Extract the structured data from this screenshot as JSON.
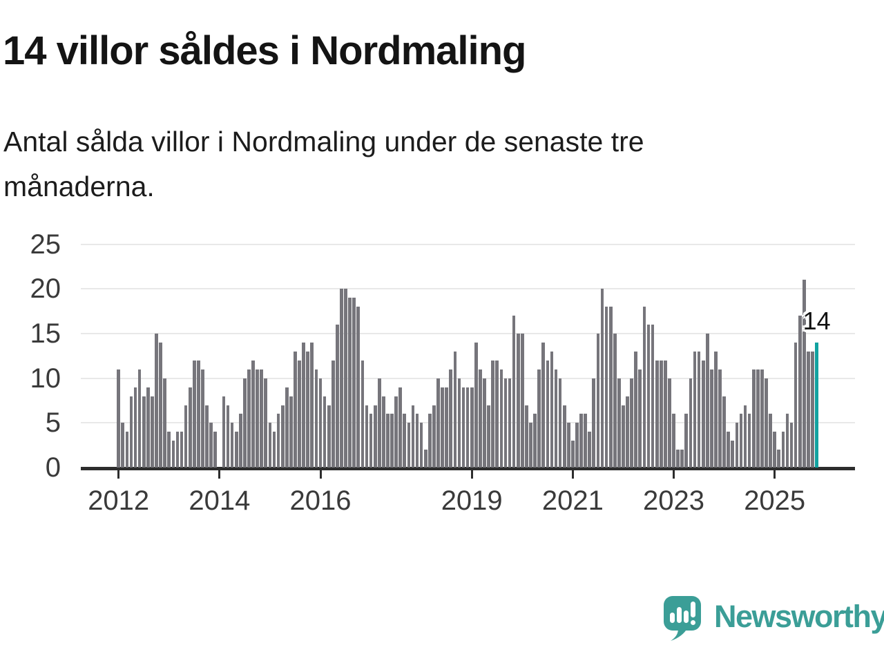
{
  "header": {
    "title": "14 villor såldes i Nordmaling",
    "subtitle_line1": "Antal sålda villor i Nordmaling under de senaste tre",
    "subtitle_line2": "månaderna."
  },
  "chart_data": {
    "type": "bar",
    "title": "14 villor såldes i Nordmaling",
    "description": "Antal sålda villor i Nordmaling under de senaste tre månaderna.",
    "frequency": "monthly",
    "x_start_year": 2012,
    "ylim": [
      0,
      25
    ],
    "yticks": [
      0,
      5,
      10,
      15,
      20,
      25
    ],
    "grid": true,
    "legend": false,
    "bar_color": "#76757b",
    "xticks": [
      {
        "label": "2012",
        "month": 0
      },
      {
        "label": "2014",
        "month": 24
      },
      {
        "label": "2016",
        "month": 48
      },
      {
        "label": "2019",
        "month": 84
      },
      {
        "label": "2021",
        "month": 108
      },
      {
        "label": "2023",
        "month": 132
      },
      {
        "label": "2025",
        "month": 156
      }
    ],
    "values": [
      11,
      5,
      4,
      8,
      9,
      11,
      8,
      9,
      8,
      15,
      14,
      10,
      4,
      3,
      4,
      4,
      7,
      9,
      12,
      12,
      11,
      7,
      5,
      4,
      0,
      8,
      7,
      5,
      4,
      6,
      10,
      11,
      12,
      11,
      11,
      10,
      5,
      4,
      6,
      7,
      9,
      8,
      13,
      12,
      14,
      13,
      14,
      11,
      10,
      8,
      7,
      12,
      16,
      20,
      20,
      19,
      19,
      18,
      12,
      7,
      6,
      7,
      10,
      8,
      6,
      6,
      8,
      9,
      6,
      5,
      7,
      6,
      5,
      2,
      6,
      7,
      10,
      9,
      9,
      11,
      13,
      10,
      9,
      9,
      9,
      14,
      11,
      10,
      7,
      12,
      12,
      11,
      10,
      10,
      17,
      15,
      15,
      7,
      5,
      6,
      11,
      14,
      12,
      13,
      11,
      10,
      7,
      5,
      3,
      5,
      6,
      6,
      4,
      10,
      15,
      20,
      18,
      18,
      15,
      10,
      7,
      8,
      10,
      13,
      11,
      18,
      16,
      16,
      12,
      12,
      12,
      10,
      6,
      2,
      2,
      6,
      10,
      13,
      13,
      12,
      15,
      11,
      13,
      11,
      8,
      4,
      3,
      5,
      6,
      7,
      6,
      11,
      11,
      11,
      10,
      6,
      4,
      2,
      4,
      6,
      5,
      14,
      17,
      21,
      13,
      13,
      14
    ],
    "highlight": {
      "index": 166,
      "value": 14,
      "label": "14",
      "color": "#12a2a0"
    }
  },
  "footer": {
    "brand": "Newsworthy",
    "logo_color": "#3b9e97"
  }
}
